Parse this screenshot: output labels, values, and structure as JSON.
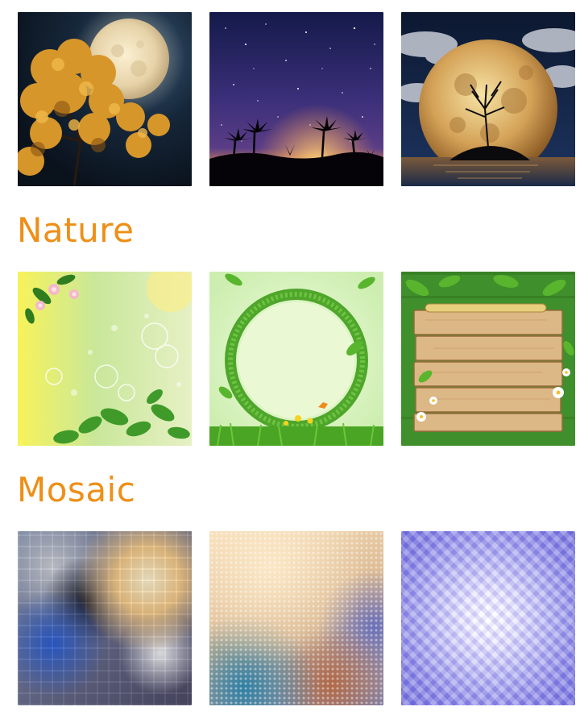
{
  "sections": [
    {
      "title": "",
      "thumbnails": [
        {
          "name": "moon-tree-thumbnail"
        },
        {
          "name": "starry-sky-thumbnail"
        },
        {
          "name": "moon-island-thumbnail"
        }
      ]
    },
    {
      "title": "Nature",
      "thumbnails": [
        {
          "name": "flower-bokeh-thumbnail"
        },
        {
          "name": "grass-circle-thumbnail"
        },
        {
          "name": "wooden-board-thumbnail"
        }
      ]
    },
    {
      "title": "Mosaic",
      "thumbnails": [
        {
          "name": "blurred-mosaic-thumbnail"
        },
        {
          "name": "gold-mosaic-thumbnail"
        },
        {
          "name": "purple-mosaic-thumbnail"
        }
      ]
    }
  ],
  "colors": {
    "section_title": "#ee8f17",
    "background": "#ffffff"
  }
}
